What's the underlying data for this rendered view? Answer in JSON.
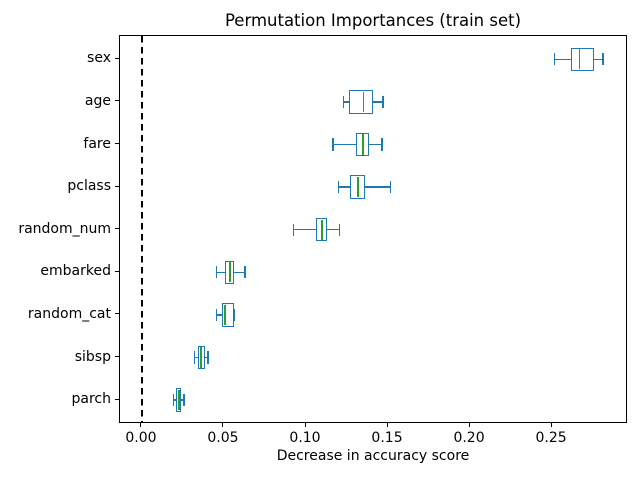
{
  "chart_data": {
    "type": "boxplot",
    "orientation": "horizontal",
    "title": "Permutation Importances (train set)",
    "xlabel": "Decrease in accuracy score",
    "ylabel": "",
    "xlim": [
      -0.0134,
      0.2963
    ],
    "grid": false,
    "legend": null,
    "xticks": [
      {
        "value": 0.0,
        "label": "0.00"
      },
      {
        "value": 0.05,
        "label": "0.05"
      },
      {
        "value": 0.1,
        "label": "0.10"
      },
      {
        "value": 0.15,
        "label": "0.15"
      },
      {
        "value": 0.2,
        "label": "0.20"
      },
      {
        "value": 0.25,
        "label": "0.25"
      }
    ],
    "refline": {
      "value": 0.0,
      "color": "#000000",
      "linestyle": "dashed"
    },
    "colors": {
      "box": "#1f77b4",
      "whisker": "#1f77b4",
      "cap": "#1f77b4",
      "median": "#2ca02c",
      "background": "#ffffff"
    },
    "boxes_top_to_bottom": [
      {
        "label": "sex",
        "whislo": 0.2514,
        "q1": 0.2615,
        "med": 0.2667,
        "q3": 0.2758,
        "whishi": 0.2809
      },
      {
        "label": "age",
        "whislo": 0.1228,
        "q1": 0.1261,
        "med": 0.135,
        "q3": 0.1407,
        "whishi": 0.1468
      },
      {
        "label": "fare",
        "whislo": 0.1163,
        "q1": 0.1305,
        "med": 0.1346,
        "q3": 0.1386,
        "whishi": 0.1462
      },
      {
        "label": "pclass",
        "whislo": 0.1197,
        "q1": 0.127,
        "med": 0.1315,
        "q3": 0.136,
        "whishi": 0.1514
      },
      {
        "label": "random_num",
        "whislo": 0.0923,
        "q1": 0.1061,
        "med": 0.1096,
        "q3": 0.1126,
        "whishi": 0.1203
      },
      {
        "label": "embarked",
        "whislo": 0.0455,
        "q1": 0.0508,
        "med": 0.0538,
        "q3": 0.0563,
        "whishi": 0.0628
      },
      {
        "label": "random_cat",
        "whislo": 0.0455,
        "q1": 0.0486,
        "med": 0.0506,
        "q3": 0.0559,
        "whishi": 0.0565
      },
      {
        "label": "sibsp",
        "whislo": 0.0319,
        "q1": 0.034,
        "med": 0.036,
        "q3": 0.0384,
        "whishi": 0.0404
      },
      {
        "label": "parch",
        "whislo": 0.0193,
        "q1": 0.0205,
        "med": 0.0227,
        "q3": 0.024,
        "whishi": 0.0258
      }
    ]
  }
}
